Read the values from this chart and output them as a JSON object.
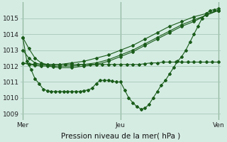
{
  "xlabel": "Pression niveau de la mer( hPa )",
  "bg_color": "#d5ece3",
  "grid_color": "#a8c8b8",
  "line_color": "#1a5c1a",
  "xtick_labels": [
    "Mer",
    "Jeu",
    "Ven"
  ],
  "xtick_positions": [
    0,
    48,
    96
  ],
  "ytick_vals": [
    1009,
    1010,
    1011,
    1012,
    1013,
    1014,
    1015
  ],
  "ylim": [
    1008.6,
    1016.0
  ],
  "xlim": [
    -1,
    97
  ],
  "series": {
    "s0": {
      "x": [
        0,
        3,
        6,
        9,
        12,
        18,
        24,
        30,
        36,
        42,
        48,
        54,
        60,
        66,
        72,
        78,
        84,
        90,
        96
      ],
      "y": [
        1013.8,
        1013.1,
        1012.5,
        1012.2,
        1012.1,
        1012.1,
        1012.2,
        1012.3,
        1012.5,
        1012.7,
        1013.0,
        1013.3,
        1013.7,
        1014.1,
        1014.5,
        1014.8,
        1015.1,
        1015.3,
        1015.5
      ]
    },
    "s1": {
      "x": [
        0,
        3,
        6,
        9,
        12,
        15,
        18,
        24,
        30,
        36,
        42,
        48,
        54,
        60,
        66,
        72,
        78,
        84,
        90,
        96
      ],
      "y": [
        1013.0,
        1012.5,
        1012.2,
        1012.1,
        1012.05,
        1012.0,
        1012.0,
        1012.0,
        1012.1,
        1012.2,
        1012.4,
        1012.7,
        1013.0,
        1013.4,
        1013.8,
        1014.2,
        1014.6,
        1014.9,
        1015.2,
        1015.5
      ]
    },
    "s2": {
      "x": [
        0,
        3,
        6,
        9,
        12,
        15,
        18,
        24,
        30,
        36,
        42,
        48,
        54,
        60,
        66,
        72,
        78,
        84,
        90,
        96
      ],
      "y": [
        1012.2,
        1012.1,
        1012.05,
        1012.0,
        1012.0,
        1011.95,
        1011.9,
        1011.9,
        1012.0,
        1012.1,
        1012.3,
        1012.6,
        1012.9,
        1013.3,
        1013.7,
        1014.1,
        1014.5,
        1014.8,
        1015.2,
        1015.5
      ]
    },
    "s3_dip": {
      "x": [
        0,
        2,
        4,
        6,
        8,
        10,
        12,
        14,
        16,
        18,
        20,
        22,
        24,
        26,
        28,
        30,
        32,
        34,
        36,
        38,
        40,
        42,
        44,
        46,
        48,
        50,
        52,
        54,
        56,
        58,
        60,
        62,
        64,
        66,
        68,
        70,
        72,
        74,
        76,
        78,
        80,
        82,
        84,
        86,
        88,
        90,
        92,
        94,
        96
      ],
      "y": [
        1013.8,
        1012.3,
        1011.8,
        1011.2,
        1010.9,
        1010.55,
        1010.45,
        1010.4,
        1010.4,
        1010.4,
        1010.4,
        1010.4,
        1010.4,
        1010.4,
        1010.4,
        1010.45,
        1010.5,
        1010.6,
        1010.9,
        1011.1,
        1011.1,
        1011.1,
        1011.05,
        1011.0,
        1011.0,
        1010.5,
        1010.0,
        1009.7,
        1009.45,
        1009.3,
        1009.35,
        1009.6,
        1010.0,
        1010.4,
        1010.8,
        1011.1,
        1011.5,
        1011.9,
        1012.3,
        1012.6,
        1013.0,
        1013.5,
        1014.0,
        1014.5,
        1015.0,
        1015.3,
        1015.5,
        1015.55,
        1015.6
      ]
    },
    "s4_flat": {
      "x": [
        0,
        3,
        6,
        9,
        12,
        15,
        18,
        21,
        24,
        27,
        30,
        33,
        36,
        39,
        42,
        45,
        48,
        51,
        54,
        57,
        60,
        63,
        66,
        69,
        72,
        75,
        78,
        81,
        84,
        87,
        90,
        93,
        96
      ],
      "y": [
        1012.2,
        1012.15,
        1012.1,
        1012.1,
        1012.1,
        1012.1,
        1012.1,
        1012.1,
        1012.1,
        1012.1,
        1012.1,
        1012.1,
        1012.1,
        1012.1,
        1012.1,
        1012.1,
        1012.1,
        1012.1,
        1012.1,
        1012.1,
        1012.15,
        1012.2,
        1012.2,
        1012.25,
        1012.25,
        1012.25,
        1012.25,
        1012.25,
        1012.25,
        1012.25,
        1012.25,
        1012.25,
        1012.25
      ]
    }
  }
}
